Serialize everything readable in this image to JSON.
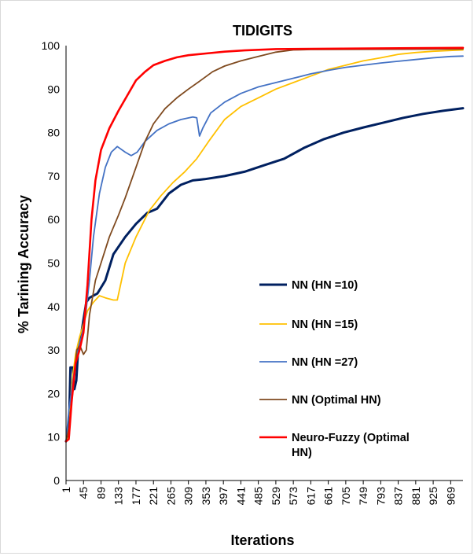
{
  "chart_data": {
    "type": "line",
    "title": "TIDIGITS",
    "xlabel": "Iterations",
    "ylabel": "% Tarining Accuracy",
    "xlim": [
      1,
      1000
    ],
    "ylim": [
      0,
      100
    ],
    "y_ticks": [
      0,
      10,
      20,
      30,
      40,
      50,
      60,
      70,
      80,
      90,
      100
    ],
    "x_tick_labels": [
      "1",
      "45",
      "89",
      "133",
      "177",
      "221",
      "265",
      "309",
      "353",
      "397",
      "441",
      "485",
      "529",
      "573",
      "617",
      "661",
      "705",
      "749",
      "793",
      "837",
      "881",
      "925",
      "969"
    ],
    "x_tick_values": [
      1,
      45,
      89,
      133,
      177,
      221,
      265,
      309,
      353,
      397,
      441,
      485,
      529,
      573,
      617,
      661,
      705,
      749,
      793,
      837,
      881,
      925,
      969
    ],
    "grid": false,
    "legend_placement": "right",
    "series": [
      {
        "name": "NN (HN =10)",
        "color": "#002060",
        "width": 3,
        "points": [
          [
            1,
            9
          ],
          [
            8,
            10
          ],
          [
            12,
            26
          ],
          [
            18,
            26
          ],
          [
            22,
            21
          ],
          [
            27,
            23
          ],
          [
            32,
            31
          ],
          [
            40,
            34
          ],
          [
            45,
            37
          ],
          [
            52,
            41
          ],
          [
            60,
            42
          ],
          [
            80,
            43
          ],
          [
            100,
            46
          ],
          [
            120,
            52
          ],
          [
            150,
            56
          ],
          [
            177,
            59
          ],
          [
            205,
            61.5
          ],
          [
            230,
            62.5
          ],
          [
            260,
            66
          ],
          [
            290,
            68
          ],
          [
            320,
            69
          ],
          [
            350,
            69.3
          ],
          [
            400,
            70
          ],
          [
            450,
            71
          ],
          [
            500,
            72.5
          ],
          [
            550,
            74
          ],
          [
            600,
            76.5
          ],
          [
            650,
            78.5
          ],
          [
            700,
            80
          ],
          [
            750,
            81.2
          ],
          [
            800,
            82.3
          ],
          [
            850,
            83.4
          ],
          [
            900,
            84.3
          ],
          [
            950,
            85
          ],
          [
            1000,
            85.6
          ]
        ]
      },
      {
        "name": "NN (HN =15)",
        "color": "#ffc000",
        "width": 1.8,
        "points": [
          [
            1,
            9
          ],
          [
            8,
            10
          ],
          [
            15,
            22
          ],
          [
            25,
            29
          ],
          [
            35,
            33
          ],
          [
            45,
            36
          ],
          [
            55,
            39
          ],
          [
            70,
            41
          ],
          [
            85,
            42.5
          ],
          [
            100,
            42
          ],
          [
            120,
            41.5
          ],
          [
            130,
            41.5
          ],
          [
            150,
            50
          ],
          [
            177,
            56
          ],
          [
            210,
            62
          ],
          [
            240,
            65.5
          ],
          [
            270,
            68.5
          ],
          [
            300,
            71
          ],
          [
            330,
            74
          ],
          [
            360,
            78
          ],
          [
            400,
            83
          ],
          [
            441,
            86
          ],
          [
            485,
            88
          ],
          [
            529,
            90
          ],
          [
            573,
            91.5
          ],
          [
            617,
            93
          ],
          [
            661,
            94.5
          ],
          [
            705,
            95.5
          ],
          [
            749,
            96.5
          ],
          [
            793,
            97.2
          ],
          [
            837,
            98
          ],
          [
            881,
            98.4
          ],
          [
            925,
            98.7
          ],
          [
            1000,
            99
          ]
        ]
      },
      {
        "name": "NN (HN =27)",
        "color": "#4472c4",
        "width": 1.8,
        "points": [
          [
            1,
            9
          ],
          [
            8,
            16
          ],
          [
            20,
            24
          ],
          [
            30,
            30
          ],
          [
            40,
            33
          ],
          [
            50,
            38
          ],
          [
            60,
            46
          ],
          [
            70,
            56
          ],
          [
            85,
            66
          ],
          [
            100,
            72
          ],
          [
            115,
            75.5
          ],
          [
            130,
            76.8
          ],
          [
            150,
            75.5
          ],
          [
            165,
            74.7
          ],
          [
            180,
            75.5
          ],
          [
            200,
            78
          ],
          [
            230,
            80.5
          ],
          [
            260,
            82
          ],
          [
            290,
            83
          ],
          [
            320,
            83.6
          ],
          [
            330,
            83.4
          ],
          [
            337,
            79.2
          ],
          [
            345,
            81
          ],
          [
            365,
            84.5
          ],
          [
            400,
            87
          ],
          [
            441,
            89
          ],
          [
            485,
            90.5
          ],
          [
            529,
            91.5
          ],
          [
            573,
            92.5
          ],
          [
            617,
            93.5
          ],
          [
            661,
            94.3
          ],
          [
            705,
            95
          ],
          [
            749,
            95.5
          ],
          [
            793,
            96
          ],
          [
            837,
            96.4
          ],
          [
            881,
            96.8
          ],
          [
            925,
            97.2
          ],
          [
            969,
            97.5
          ],
          [
            1000,
            97.6
          ]
        ]
      },
      {
        "name": "NN (Optimal HN)",
        "color": "#7f4a1f",
        "width": 1.8,
        "points": [
          [
            1,
            9
          ],
          [
            8,
            12
          ],
          [
            20,
            22
          ],
          [
            28,
            30
          ],
          [
            36,
            31
          ],
          [
            45,
            29
          ],
          [
            52,
            30
          ],
          [
            60,
            38
          ],
          [
            75,
            46
          ],
          [
            89,
            50
          ],
          [
            110,
            56
          ],
          [
            133,
            61
          ],
          [
            150,
            65
          ],
          [
            177,
            72
          ],
          [
            200,
            78
          ],
          [
            221,
            82
          ],
          [
            250,
            85.5
          ],
          [
            280,
            88
          ],
          [
            309,
            90
          ],
          [
            340,
            92
          ],
          [
            370,
            94
          ],
          [
            400,
            95.3
          ],
          [
            441,
            96.5
          ],
          [
            485,
            97.5
          ],
          [
            529,
            98.5
          ],
          [
            573,
            99
          ],
          [
            617,
            99.1
          ],
          [
            1000,
            99.2
          ]
        ]
      },
      {
        "name": "Neuro-Fuzzy (Optimal HN)",
        "color": "#ff0000",
        "width": 2.6,
        "points": [
          [
            1,
            9
          ],
          [
            8,
            9.5
          ],
          [
            15,
            18
          ],
          [
            25,
            27
          ],
          [
            35,
            30
          ],
          [
            45,
            34
          ],
          [
            55,
            45
          ],
          [
            65,
            60
          ],
          [
            75,
            69
          ],
          [
            89,
            76
          ],
          [
            110,
            81
          ],
          [
            133,
            85
          ],
          [
            155,
            88.5
          ],
          [
            177,
            92
          ],
          [
            200,
            94
          ],
          [
            221,
            95.5
          ],
          [
            250,
            96.5
          ],
          [
            280,
            97.3
          ],
          [
            309,
            97.8
          ],
          [
            353,
            98.2
          ],
          [
            400,
            98.6
          ],
          [
            450,
            98.9
          ],
          [
            529,
            99.2
          ],
          [
            1000,
            99.5
          ]
        ]
      }
    ]
  }
}
